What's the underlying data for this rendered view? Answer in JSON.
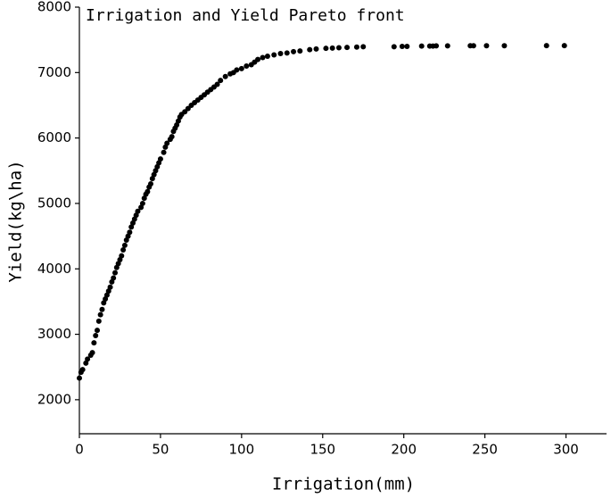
{
  "chart_data": {
    "type": "scatter",
    "title": "Irrigation and Yield Pareto front",
    "x_label": "Irrigation(mm)",
    "y_label": "Yield(kg\\ha)",
    "color": "#000000",
    "xlim": [
      0,
      325
    ],
    "ylim": [
      1480,
      8000
    ],
    "xticks": [
      0,
      50,
      100,
      150,
      200,
      250,
      300
    ],
    "yticks": [
      2000,
      3000,
      4000,
      5000,
      6000,
      7000,
      8000
    ],
    "x": [
      0,
      1,
      2,
      4,
      5,
      7,
      8,
      9,
      10,
      11,
      12,
      13,
      14,
      15,
      16,
      17,
      18,
      19,
      20,
      21,
      22,
      23,
      24,
      25,
      26,
      27,
      28,
      29,
      30,
      31,
      32,
      33,
      34,
      35,
      36,
      38,
      39,
      40,
      41,
      42,
      43,
      44,
      45,
      46,
      47,
      48,
      49,
      50,
      52,
      53,
      54,
      56,
      57,
      58,
      59,
      60,
      61,
      62,
      63,
      65,
      67,
      69,
      71,
      73,
      75,
      77,
      79,
      81,
      83,
      85,
      87,
      90,
      93,
      95,
      97,
      100,
      103,
      106,
      108,
      110,
      113,
      116,
      120,
      124,
      128,
      132,
      136,
      142,
      146,
      152,
      156,
      160,
      165,
      171,
      175,
      194,
      199,
      202,
      211,
      216,
      218,
      220,
      227,
      241,
      243,
      251,
      262,
      288,
      299
    ],
    "values": [
      2330,
      2420,
      2460,
      2560,
      2620,
      2680,
      2720,
      2870,
      2980,
      3060,
      3200,
      3300,
      3380,
      3480,
      3540,
      3600,
      3660,
      3720,
      3800,
      3860,
      3940,
      4020,
      4080,
      4140,
      4200,
      4290,
      4360,
      4440,
      4500,
      4560,
      4640,
      4700,
      4760,
      4820,
      4880,
      4940,
      5000,
      5080,
      5140,
      5180,
      5250,
      5300,
      5380,
      5440,
      5500,
      5560,
      5620,
      5680,
      5780,
      5860,
      5920,
      5980,
      6020,
      6100,
      6150,
      6200,
      6260,
      6320,
      6360,
      6400,
      6450,
      6500,
      6540,
      6580,
      6620,
      6660,
      6700,
      6740,
      6780,
      6820,
      6880,
      6940,
      6980,
      7000,
      7040,
      7060,
      7100,
      7120,
      7160,
      7200,
      7230,
      7250,
      7270,
      7290,
      7300,
      7320,
      7330,
      7350,
      7360,
      7370,
      7375,
      7380,
      7385,
      7390,
      7395,
      7395,
      7400,
      7400,
      7405,
      7405,
      7405,
      7408,
      7408,
      7410,
      7410,
      7410,
      7410,
      7412,
      7412
    ]
  }
}
